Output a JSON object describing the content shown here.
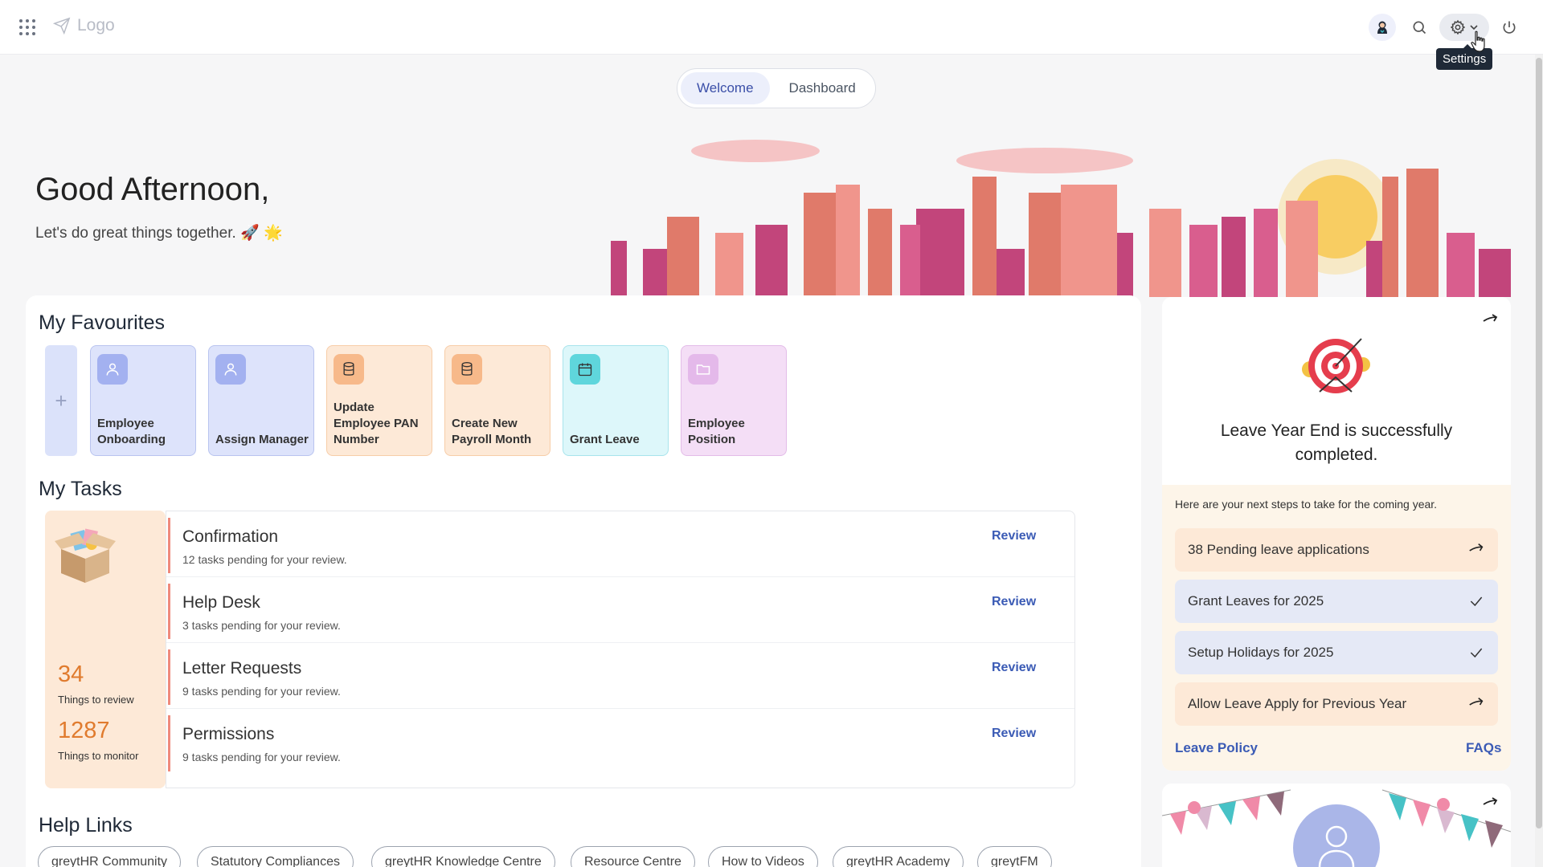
{
  "header": {
    "logo_text": "Logo",
    "tooltip": "Settings",
    "tabs": [
      {
        "label": "Welcome",
        "active": true
      },
      {
        "label": "Dashboard",
        "active": false
      }
    ]
  },
  "greeting": {
    "title": "Good Afternoon,",
    "subtitle": "Let's do great things together. 🚀 🌟"
  },
  "favourites": {
    "title": "My Favourites",
    "add_symbol": "+",
    "items": [
      {
        "label": "Employee Onboarding",
        "icon": "user-icon",
        "color": "#a3b1f0"
      },
      {
        "label": "Assign Manager",
        "icon": "user-icon",
        "color": "#a3b1f0"
      },
      {
        "label": "Update Employee PAN Number",
        "icon": "database-icon",
        "color": "#f7b98a"
      },
      {
        "label": "Create New Payroll Month",
        "icon": "database-icon",
        "color": "#f7b98a"
      },
      {
        "label": "Grant Leave",
        "icon": "calendar-icon",
        "color": "#5fd6dc"
      },
      {
        "label": "Employee Position",
        "icon": "folder-icon",
        "color": "#e4b9ea"
      }
    ]
  },
  "tasks": {
    "title": "My Tasks",
    "review_count": "34",
    "review_label": "Things to review",
    "monitor_count": "1287",
    "monitor_label": "Things to monitor",
    "items": [
      {
        "title": "Confirmation",
        "sub": "12 tasks pending for your review.",
        "action": "Review"
      },
      {
        "title": "Help Desk",
        "sub": "3 tasks pending for your review.",
        "action": "Review"
      },
      {
        "title": "Letter Requests",
        "sub": "9 tasks pending for your review.",
        "action": "Review"
      },
      {
        "title": "Permissions",
        "sub": "9 tasks pending for your review.",
        "action": "Review"
      }
    ]
  },
  "help_links": {
    "title": "Help Links",
    "items": [
      "greytHR Community",
      "Statutory Compliances",
      "greytHR Knowledge Centre",
      "Resource Centre",
      "How to Videos",
      "greytHR Academy",
      "greytFM"
    ]
  },
  "leave_card": {
    "headline": "Leave Year End is successfully completed.",
    "steps_intro": "Here are your next steps to take for the coming year.",
    "steps": [
      {
        "label": "38 Pending leave applications",
        "state": "pending"
      },
      {
        "label": "Grant Leaves for 2025",
        "state": "done"
      },
      {
        "label": "Setup Holidays for 2025",
        "state": "done"
      },
      {
        "label": "Allow Leave Apply for Previous Year",
        "state": "pending"
      }
    ],
    "link_left": "Leave Policy",
    "link_right": "FAQs"
  },
  "colors": {
    "accent": "#3b5bb5",
    "stat": "#e07b2e",
    "task_marker": "#ef8a7d"
  }
}
